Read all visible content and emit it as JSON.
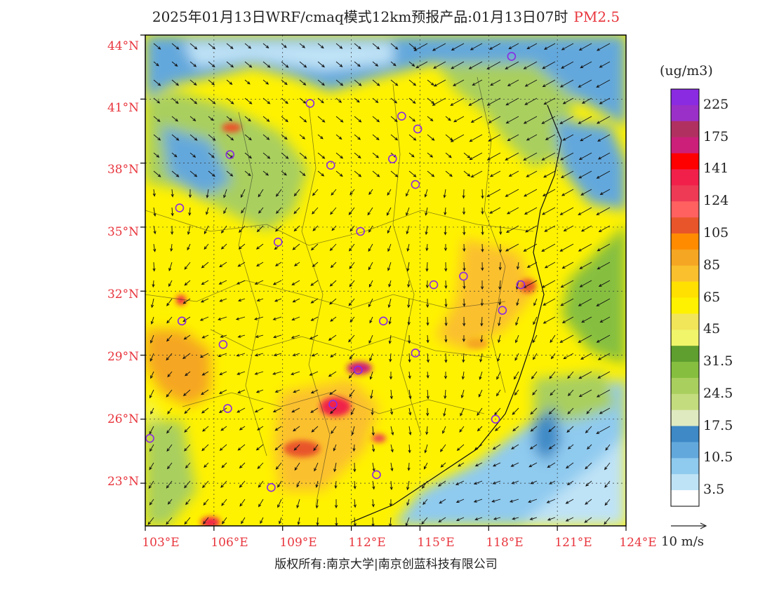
{
  "title": "2025年01月13日WRF/cmaq模式12km预报产品:01月13日07时",
  "variable": "PM2.5",
  "variable_color": "#e8353d",
  "lat_labels": [
    "44°N",
    "41°N",
    "38°N",
    "35°N",
    "32°N",
    "29°N",
    "26°N",
    "23°N"
  ],
  "lon_labels": [
    "103°E",
    "106°E",
    "109°E",
    "112°E",
    "115°E",
    "118°E",
    "121°E",
    "124°E"
  ],
  "colorbar": {
    "units": "(ug/m3)",
    "labels": [
      "225",
      "175",
      "141",
      "124",
      "105",
      "85",
      "65",
      "45",
      "31.5",
      "24.5",
      "17.5",
      "10.5",
      "3.5"
    ],
    "colors_top_to_bottom": [
      "#8a2be2",
      "#9b30c8",
      "#b03060",
      "#cc1f7a",
      "#ff0000",
      "#f0204a",
      "#ee3a55",
      "#ff6060",
      "#e8552a",
      "#ff8c00",
      "#f5a623",
      "#fbc02d",
      "#ffe000",
      "#fff200",
      "#f1e55a",
      "#f0f56a",
      "#5f9f2f",
      "#86bf3f",
      "#a9cf5f",
      "#c3dc7e",
      "#dfeac0",
      "#3e89c6",
      "#63a8dc",
      "#8fcaef",
      "#bfe3f6",
      "#ffffff"
    ]
  },
  "wind_scale_label": "10 m/s",
  "copyright": "版权所有:南京大学|南京创蓝科技有限公司",
  "chart_data": {
    "type": "heatmap",
    "title": "2025年01月13日WRF/cmaq模式12km预报产品:01月13日07时",
    "variable": "PM2.5",
    "units": "ug/m3",
    "xlim": [
      103,
      124
    ],
    "ylim": [
      21,
      44
    ],
    "x_ticks": [
      103,
      106,
      109,
      112,
      115,
      118,
      121,
      124
    ],
    "y_ticks": [
      23,
      26,
      29,
      32,
      35,
      38,
      41,
      44
    ],
    "levels": [
      3.5,
      10.5,
      17.5,
      24.5,
      31.5,
      45,
      65,
      85,
      105,
      124,
      141,
      175,
      225
    ],
    "grid": true,
    "legend_position": "right",
    "wind_vectors": {
      "reference": "10 m/s"
    },
    "stations": [
      {
        "lon": 119.0,
        "lat": 43.0
      },
      {
        "lon": 110.2,
        "lat": 40.8
      },
      {
        "lon": 114.2,
        "lat": 40.2
      },
      {
        "lon": 114.9,
        "lat": 39.6
      },
      {
        "lon": 106.7,
        "lat": 38.4
      },
      {
        "lon": 111.1,
        "lat": 37.9
      },
      {
        "lon": 113.8,
        "lat": 38.2
      },
      {
        "lon": 114.8,
        "lat": 37.0
      },
      {
        "lon": 104.5,
        "lat": 35.9
      },
      {
        "lon": 108.8,
        "lat": 34.3
      },
      {
        "lon": 112.4,
        "lat": 34.8
      },
      {
        "lon": 115.6,
        "lat": 32.3
      },
      {
        "lon": 116.9,
        "lat": 32.7
      },
      {
        "lon": 119.4,
        "lat": 32.3
      },
      {
        "lon": 118.6,
        "lat": 31.1
      },
      {
        "lon": 104.6,
        "lat": 30.6
      },
      {
        "lon": 113.4,
        "lat": 30.6
      },
      {
        "lon": 106.4,
        "lat": 29.5
      },
      {
        "lon": 114.8,
        "lat": 29.1
      },
      {
        "lon": 112.3,
        "lat": 28.3
      },
      {
        "lon": 106.6,
        "lat": 26.5
      },
      {
        "lon": 111.2,
        "lat": 26.7
      },
      {
        "lon": 118.3,
        "lat": 26.0
      },
      {
        "lon": 103.2,
        "lat": 25.1
      },
      {
        "lon": 113.1,
        "lat": 23.4
      },
      {
        "lon": 108.5,
        "lat": 22.8
      }
    ]
  }
}
